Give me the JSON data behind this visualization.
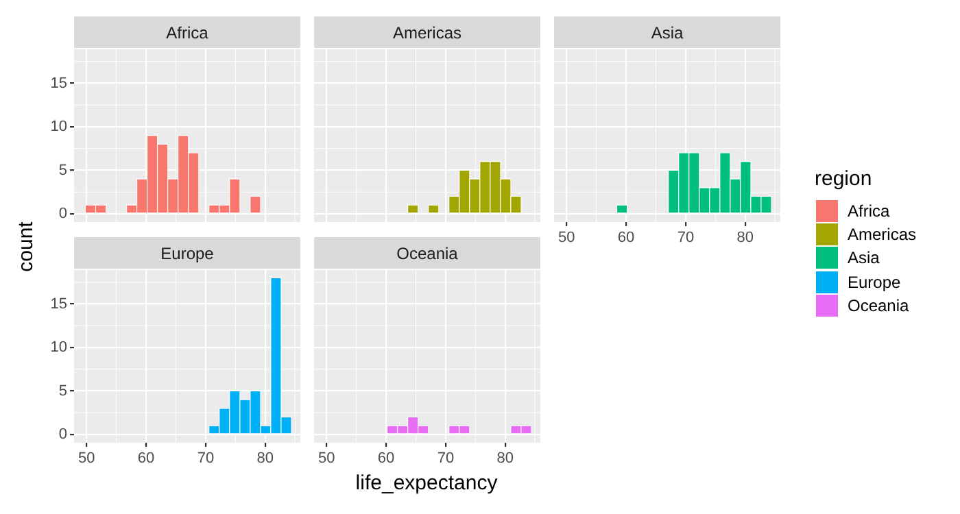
{
  "chart_data": [
    {
      "type": "histogram",
      "title": "Africa",
      "xlabel": "life_expectancy",
      "ylabel": "count",
      "legend": "right",
      "legend_title": "region",
      "bins": [
        49.8,
        51.53,
        53.26,
        54.99,
        56.72,
        58.45,
        60.18,
        61.91,
        63.64,
        65.37,
        67.1,
        68.83,
        70.56,
        72.29,
        74.02,
        75.75,
        77.48,
        79.21,
        80.94,
        82.67,
        84.4
      ],
      "series": [
        {
          "name": "Africa",
          "color": "#f8766d",
          "values": [
            1,
            1,
            0,
            0,
            1,
            4,
            9,
            8,
            4,
            9,
            7,
            0,
            1,
            1,
            4,
            0,
            2,
            0,
            0,
            0
          ]
        }
      ],
      "xlim": [
        47.9,
        85.9
      ],
      "ylim": [
        -0.95,
        18.9
      ],
      "xticks": [
        50,
        60,
        70,
        80
      ],
      "yticks": [
        0,
        5,
        10,
        15
      ],
      "grid": true,
      "tick_labels": "y"
    },
    {
      "type": "histogram",
      "title": "Americas",
      "legend": "right",
      "bins": [
        49.8,
        51.53,
        53.26,
        54.99,
        56.72,
        58.45,
        60.18,
        61.91,
        63.64,
        65.37,
        67.1,
        68.83,
        70.56,
        72.29,
        74.02,
        75.75,
        77.48,
        79.21,
        80.94,
        82.67,
        84.4
      ],
      "series": [
        {
          "name": "Americas",
          "color": "#a3a500",
          "values": [
            0,
            0,
            0,
            0,
            0,
            0,
            0,
            0,
            1,
            0,
            1,
            0,
            2,
            5,
            4,
            6,
            6,
            4,
            2,
            0
          ]
        }
      ],
      "xlim": [
        47.9,
        85.9
      ],
      "ylim": [
        -0.95,
        18.9
      ],
      "xticks": [
        50,
        60,
        70,
        80
      ],
      "yticks": [
        0,
        5,
        10,
        15
      ],
      "grid": true,
      "tick_labels": false
    },
    {
      "type": "histogram",
      "title": "Asia",
      "legend": "right",
      "bins": [
        49.8,
        51.53,
        53.26,
        54.99,
        56.72,
        58.45,
        60.18,
        61.91,
        63.64,
        65.37,
        67.1,
        68.83,
        70.56,
        72.29,
        74.02,
        75.75,
        77.48,
        79.21,
        80.94,
        82.67,
        84.4
      ],
      "series": [
        {
          "name": "Asia",
          "color": "#00bf7d",
          "values": [
            0,
            0,
            0,
            0,
            0,
            1,
            0,
            0,
            0,
            0,
            5,
            7,
            7,
            3,
            3,
            7,
            4,
            6,
            2,
            2
          ]
        }
      ],
      "xlim": [
        47.9,
        85.9
      ],
      "ylim": [
        -0.95,
        18.9
      ],
      "xticks": [
        50,
        60,
        70,
        80
      ],
      "yticks": [
        0,
        5,
        10,
        15
      ],
      "grid": true,
      "tick_labels": "x"
    },
    {
      "type": "histogram",
      "title": "Europe",
      "legend": "right",
      "bins": [
        49.8,
        51.53,
        53.26,
        54.99,
        56.72,
        58.45,
        60.18,
        61.91,
        63.64,
        65.37,
        67.1,
        68.83,
        70.56,
        72.29,
        74.02,
        75.75,
        77.48,
        79.21,
        80.94,
        82.67,
        84.4
      ],
      "series": [
        {
          "name": "Europe",
          "color": "#00b0f6",
          "values": [
            0,
            0,
            0,
            0,
            0,
            0,
            0,
            0,
            0,
            0,
            0,
            0,
            1,
            3,
            5,
            4,
            5,
            1,
            18,
            2
          ]
        }
      ],
      "xlim": [
        47.9,
        85.9
      ],
      "ylim": [
        -0.95,
        18.9
      ],
      "xticks": [
        50,
        60,
        70,
        80
      ],
      "yticks": [
        0,
        5,
        10,
        15
      ],
      "grid": true
    },
    {
      "type": "histogram",
      "title": "Oceania",
      "legend": "right",
      "bins": [
        49.8,
        51.53,
        53.26,
        54.99,
        56.72,
        58.45,
        60.18,
        61.91,
        63.64,
        65.37,
        67.1,
        68.83,
        70.56,
        72.29,
        74.02,
        75.75,
        77.48,
        79.21,
        80.94,
        82.67,
        84.4
      ],
      "series": [
        {
          "name": "Oceania",
          "color": "#e76bf3",
          "values": [
            0,
            0,
            0,
            0,
            0,
            0,
            1,
            1,
            2,
            1,
            0,
            0,
            1,
            1,
            0,
            0,
            0,
            0,
            1,
            1
          ]
        }
      ],
      "xlim": [
        47.9,
        85.9
      ],
      "ylim": [
        -0.95,
        18.9
      ],
      "xticks": [
        50,
        60,
        70,
        80
      ],
      "yticks": [
        0,
        5,
        10,
        15
      ],
      "grid": true,
      "tick_labels": "x"
    }
  ]
}
